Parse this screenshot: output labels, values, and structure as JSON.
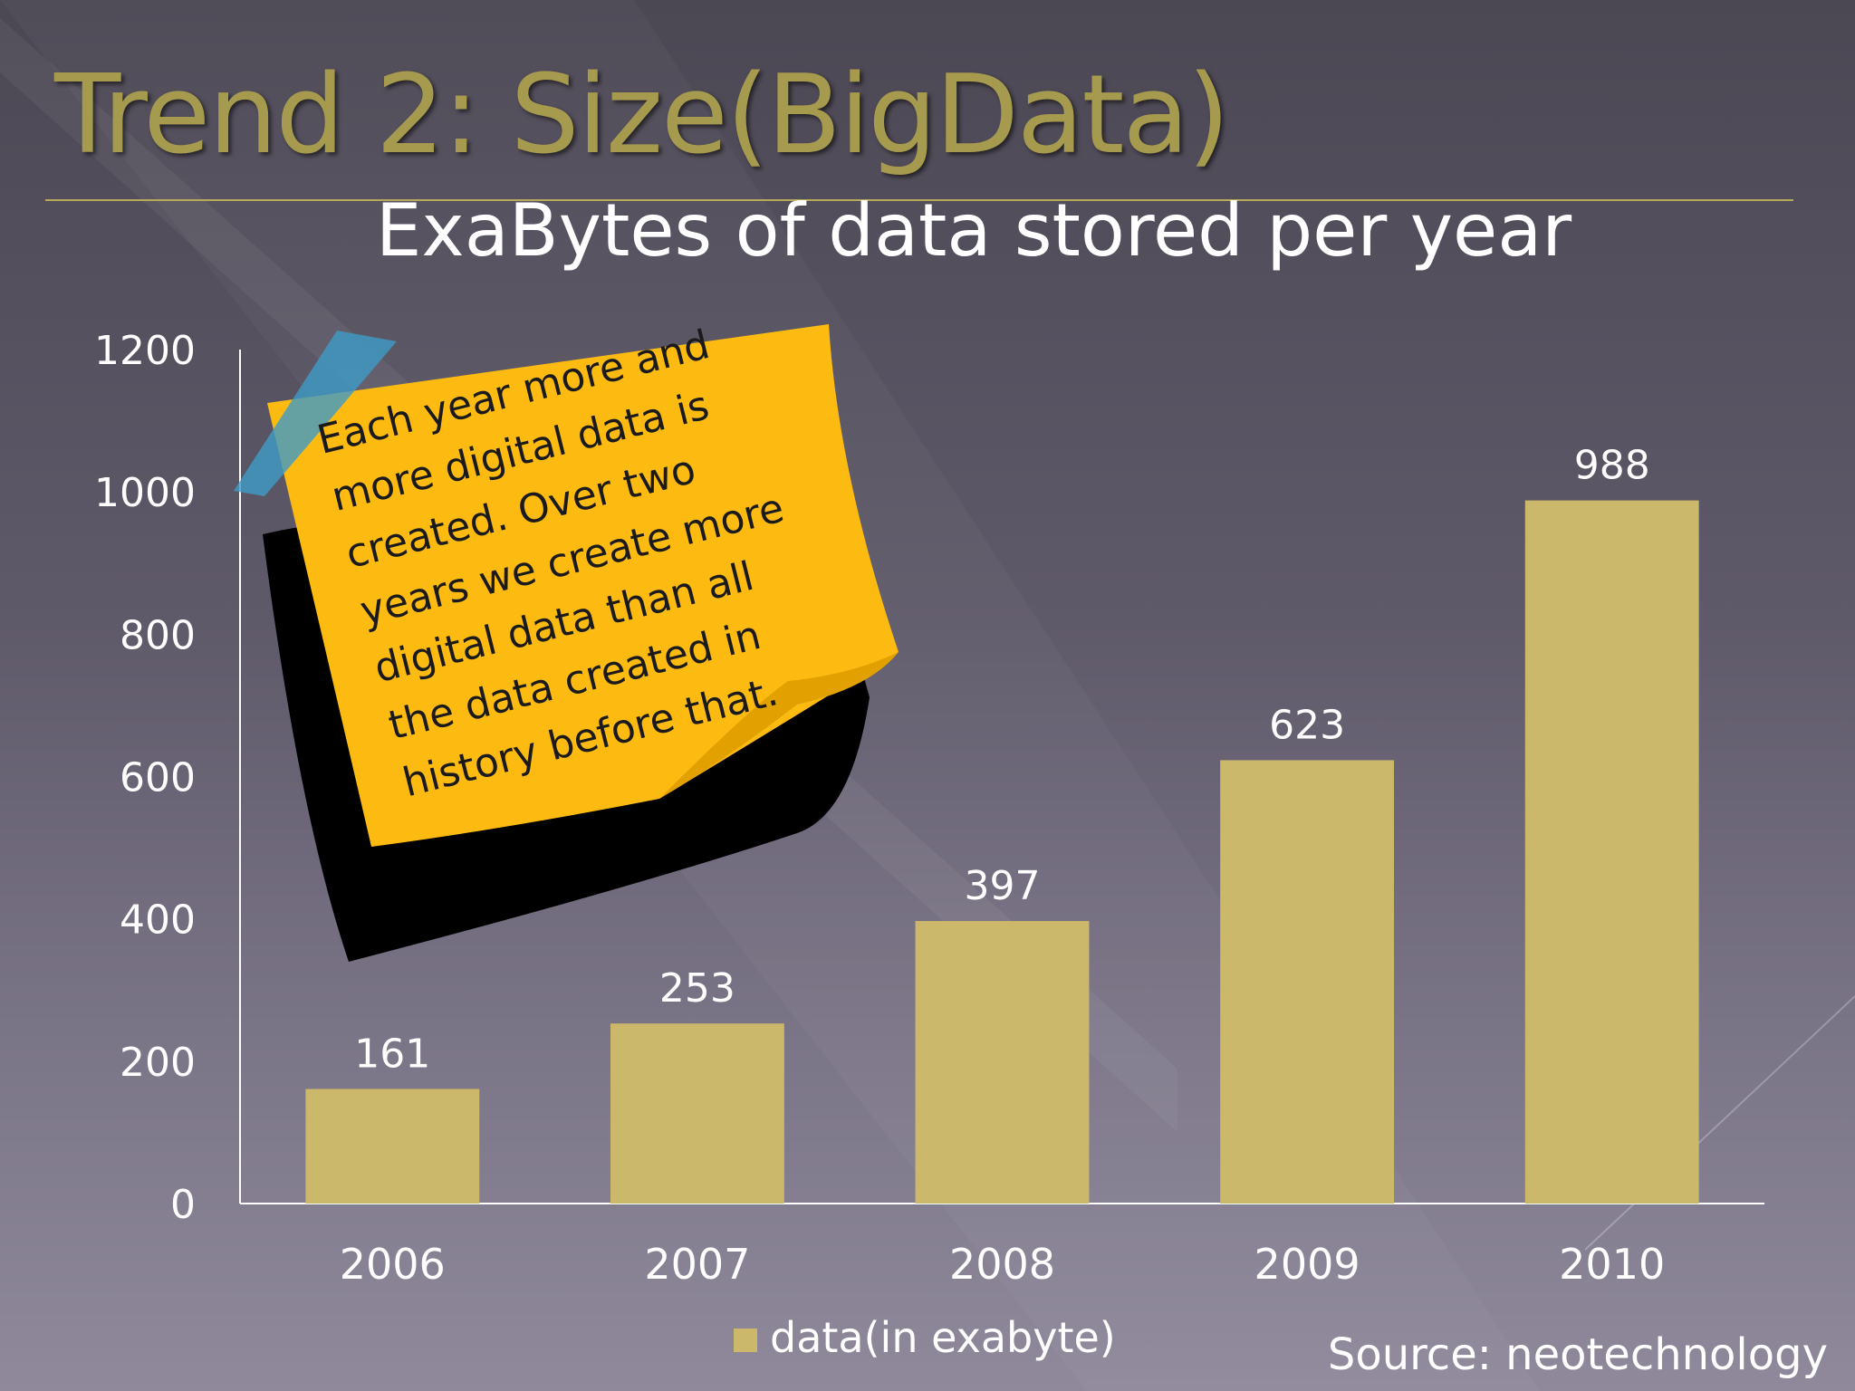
{
  "slide": {
    "title": "Trend 2: Size(BigData)",
    "source": "Source: neotechnology"
  },
  "note": {
    "lines": [
      "Each year more and",
      "more digital data is",
      "created. Over two",
      "years we create more",
      "digital data than all",
      "the data created in",
      "history before that."
    ]
  },
  "chart_data": {
    "type": "bar",
    "title": "ExaBytes of data stored per year",
    "categories": [
      "2006",
      "2007",
      "2008",
      "2009",
      "2010"
    ],
    "series": [
      {
        "name": "data(in exabyte)",
        "values": [
          161,
          253,
          397,
          623,
          988
        ]
      }
    ],
    "data_labels": [
      "161",
      "253",
      "397",
      "623",
      "988"
    ],
    "ylim": [
      0,
      1200
    ],
    "yticks": [
      "0",
      "200",
      "400",
      "600",
      "800",
      "1000",
      "1200"
    ],
    "legend_position": "bottom",
    "grid": false
  },
  "colors": {
    "bar": "#cbb86a",
    "title": "#a69a4f",
    "text": "#ffffff",
    "note": "#fdbb12",
    "note_shadow": "#000000",
    "tape": "#3e9bc7"
  }
}
